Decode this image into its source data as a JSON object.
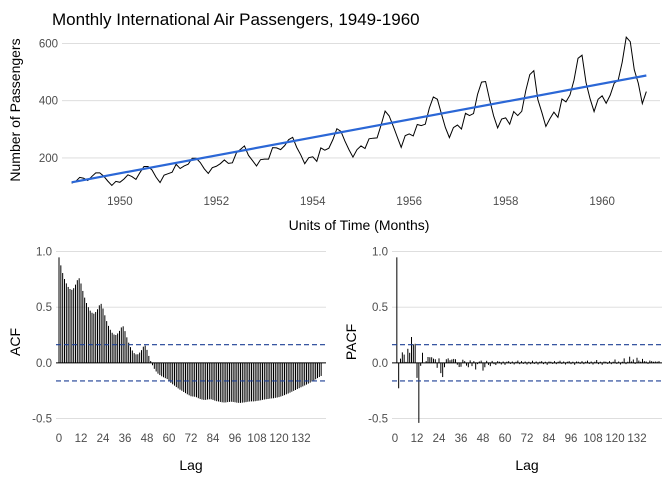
{
  "title": "Monthly International Air Passengers, 1949-1960",
  "colors": {
    "series": "#000000",
    "trend": "#2b67d6",
    "ci": "#1c3f94",
    "grid": "#d9d9d9",
    "tick": "#4d4d4d"
  },
  "chart_data": [
    {
      "type": "line",
      "title": "Monthly International Air Passengers, 1949-1960",
      "xlabel": "Units of Time (Months)",
      "ylabel": "Number of Passengers",
      "xlim": [
        1948.8,
        1961.2
      ],
      "ylim": [
        95,
        640
      ],
      "xticks": [
        1950,
        1952,
        1954,
        1956,
        1958,
        1960
      ],
      "yticks": [
        200,
        400,
        600
      ],
      "grid": true,
      "x_start": 1949.0,
      "x_step": 0.0833333,
      "series": [
        {
          "values": [
            112,
            118,
            132,
            129,
            121,
            135,
            148,
            148,
            136,
            119,
            104,
            118,
            115,
            126,
            141,
            135,
            125,
            149,
            170,
            170,
            158,
            133,
            114,
            140,
            145,
            150,
            178,
            163,
            172,
            178,
            199,
            199,
            184,
            162,
            146,
            166,
            171,
            180,
            193,
            181,
            183,
            218,
            230,
            242,
            209,
            191,
            172,
            194,
            196,
            196,
            236,
            235,
            229,
            243,
            264,
            272,
            237,
            211,
            180,
            201,
            204,
            188,
            235,
            227,
            234,
            264,
            302,
            293,
            259,
            229,
            203,
            229,
            242,
            233,
            267,
            269,
            270,
            315,
            364,
            347,
            312,
            274,
            237,
            278,
            284,
            277,
            317,
            313,
            318,
            374,
            413,
            405,
            355,
            306,
            271,
            306,
            315,
            301,
            356,
            348,
            355,
            422,
            465,
            467,
            404,
            347,
            305,
            336,
            340,
            318,
            362,
            348,
            363,
            435,
            491,
            505,
            404,
            359,
            310,
            337,
            360,
            342,
            406,
            396,
            420,
            472,
            548,
            559,
            463,
            407,
            362,
            405,
            417,
            391,
            419,
            461,
            472,
            535,
            622,
            606,
            508,
            461,
            390,
            432
          ]
        },
        {
          "values": [
            115,
            488
          ]
        }
      ]
    },
    {
      "type": "bar",
      "xlabel": "Lag",
      "ylabel": "ACF",
      "ylim": [
        -0.55,
        1.05
      ],
      "yticks": [
        -0.5,
        0.0,
        0.5,
        1.0
      ],
      "xticks": [
        0,
        12,
        24,
        36,
        48,
        60,
        72,
        84,
        96,
        108,
        120,
        132
      ],
      "grid": true,
      "ci": 0.163,
      "x_start": 0,
      "values": [
        0.948,
        0.876,
        0.807,
        0.753,
        0.714,
        0.682,
        0.663,
        0.656,
        0.671,
        0.703,
        0.743,
        0.76,
        0.713,
        0.646,
        0.586,
        0.538,
        0.5,
        0.469,
        0.45,
        0.442,
        0.457,
        0.482,
        0.517,
        0.53,
        0.488,
        0.427,
        0.375,
        0.332,
        0.297,
        0.27,
        0.254,
        0.25,
        0.264,
        0.287,
        0.318,
        0.328,
        0.285,
        0.229,
        0.181,
        0.141,
        0.111,
        0.087,
        0.076,
        0.077,
        0.092,
        0.114,
        0.145,
        0.155,
        0.116,
        0.062,
        0.016,
        -0.022,
        -0.054,
        -0.078,
        -0.097,
        -0.11,
        -0.121,
        -0.13,
        -0.138,
        -0.146,
        -0.165,
        -0.18,
        -0.193,
        -0.205,
        -0.218,
        -0.23,
        -0.241,
        -0.251,
        -0.262,
        -0.272,
        -0.283,
        -0.292,
        -0.3,
        -0.303,
        -0.305,
        -0.31,
        -0.318,
        -0.325,
        -0.33,
        -0.333,
        -0.333,
        -0.33,
        -0.328,
        -0.328,
        -0.333,
        -0.34,
        -0.345,
        -0.348,
        -0.352,
        -0.355,
        -0.357,
        -0.356,
        -0.353,
        -0.351,
        -0.35,
        -0.352,
        -0.355,
        -0.358,
        -0.36,
        -0.36,
        -0.358,
        -0.356,
        -0.353,
        -0.35,
        -0.348,
        -0.347,
        -0.347,
        -0.345,
        -0.342,
        -0.34,
        -0.337,
        -0.333,
        -0.33,
        -0.327,
        -0.325,
        -0.322,
        -0.32,
        -0.318,
        -0.315,
        -0.312,
        -0.308,
        -0.303,
        -0.297,
        -0.29,
        -0.283,
        -0.276,
        -0.268,
        -0.26,
        -0.252,
        -0.244,
        -0.236,
        -0.228,
        -0.22,
        -0.212,
        -0.204,
        -0.196,
        -0.187,
        -0.178,
        -0.168,
        -0.158,
        -0.148,
        -0.138,
        -0.128,
        -0.118
      ]
    },
    {
      "type": "bar",
      "xlabel": "Lag",
      "ylabel": "PACF",
      "ylim": [
        -0.55,
        1.05
      ],
      "yticks": [
        -0.5,
        0.0,
        0.5,
        1.0
      ],
      "xticks": [
        0,
        12,
        24,
        36,
        48,
        60,
        72,
        84,
        96,
        108,
        120,
        132
      ],
      "grid": true,
      "ci": 0.163,
      "x_start": 1,
      "values": [
        0.948,
        -0.229,
        0.038,
        0.094,
        0.074,
        0.008,
        0.126,
        0.09,
        0.232,
        0.166,
        0.171,
        -0.135,
        -0.54,
        -0.027,
        0.091,
        0.002,
        0.015,
        0.052,
        0.05,
        0.05,
        0.038,
        0.032,
        -0.045,
        0.04,
        -0.093,
        -0.128,
        -0.04,
        0.032,
        0.04,
        0.023,
        0.03,
        0.035,
        0.032,
        -0.017,
        -0.038,
        -0.035,
        0.028,
        0.015,
        -0.025,
        -0.04,
        0.022,
        -0.03,
        0.015,
        -0.06,
        -0.012,
        0.012,
        0.02,
        -0.07,
        -0.04,
        0.018,
        -0.018,
        -0.03,
        0.017,
        -0.012,
        -0.02,
        0.015,
        0.01,
        -0.015,
        0.012,
        -0.018,
        0.01,
        0.015,
        -0.01,
        0.012,
        -0.015,
        0.01,
        0.02,
        -0.012,
        0.015,
        -0.01,
        0.012,
        -0.015,
        0.01,
        -0.012,
        0.018,
        -0.01,
        0.012,
        -0.015,
        0.01,
        0.015,
        -0.012,
        0.01,
        -0.018,
        0.012,
        0.01,
        -0.01,
        0.015,
        -0.012,
        0.01,
        0.018,
        -0.01,
        0.012,
        -0.015,
        0.01,
        0.015,
        -0.012,
        0.01,
        -0.018,
        0.012,
        0.01,
        -0.01,
        0.015,
        -0.012,
        0.01,
        0.02,
        -0.01,
        0.012,
        -0.015,
        0.01,
        0.025,
        -0.012,
        0.01,
        -0.018,
        0.012,
        0.01,
        -0.01,
        0.015,
        -0.012,
        0.01,
        0.03,
        -0.01,
        0.012,
        -0.015,
        0.01,
        0.04,
        -0.012,
        0.01,
        0.055,
        0.012,
        0.03,
        -0.01,
        0.045,
        0.02,
        0.01,
        0.035,
        0.015,
        0.012,
        -0.01,
        0.02,
        0.015,
        0.01,
        0.012,
        0.01,
        0.015
      ]
    }
  ]
}
